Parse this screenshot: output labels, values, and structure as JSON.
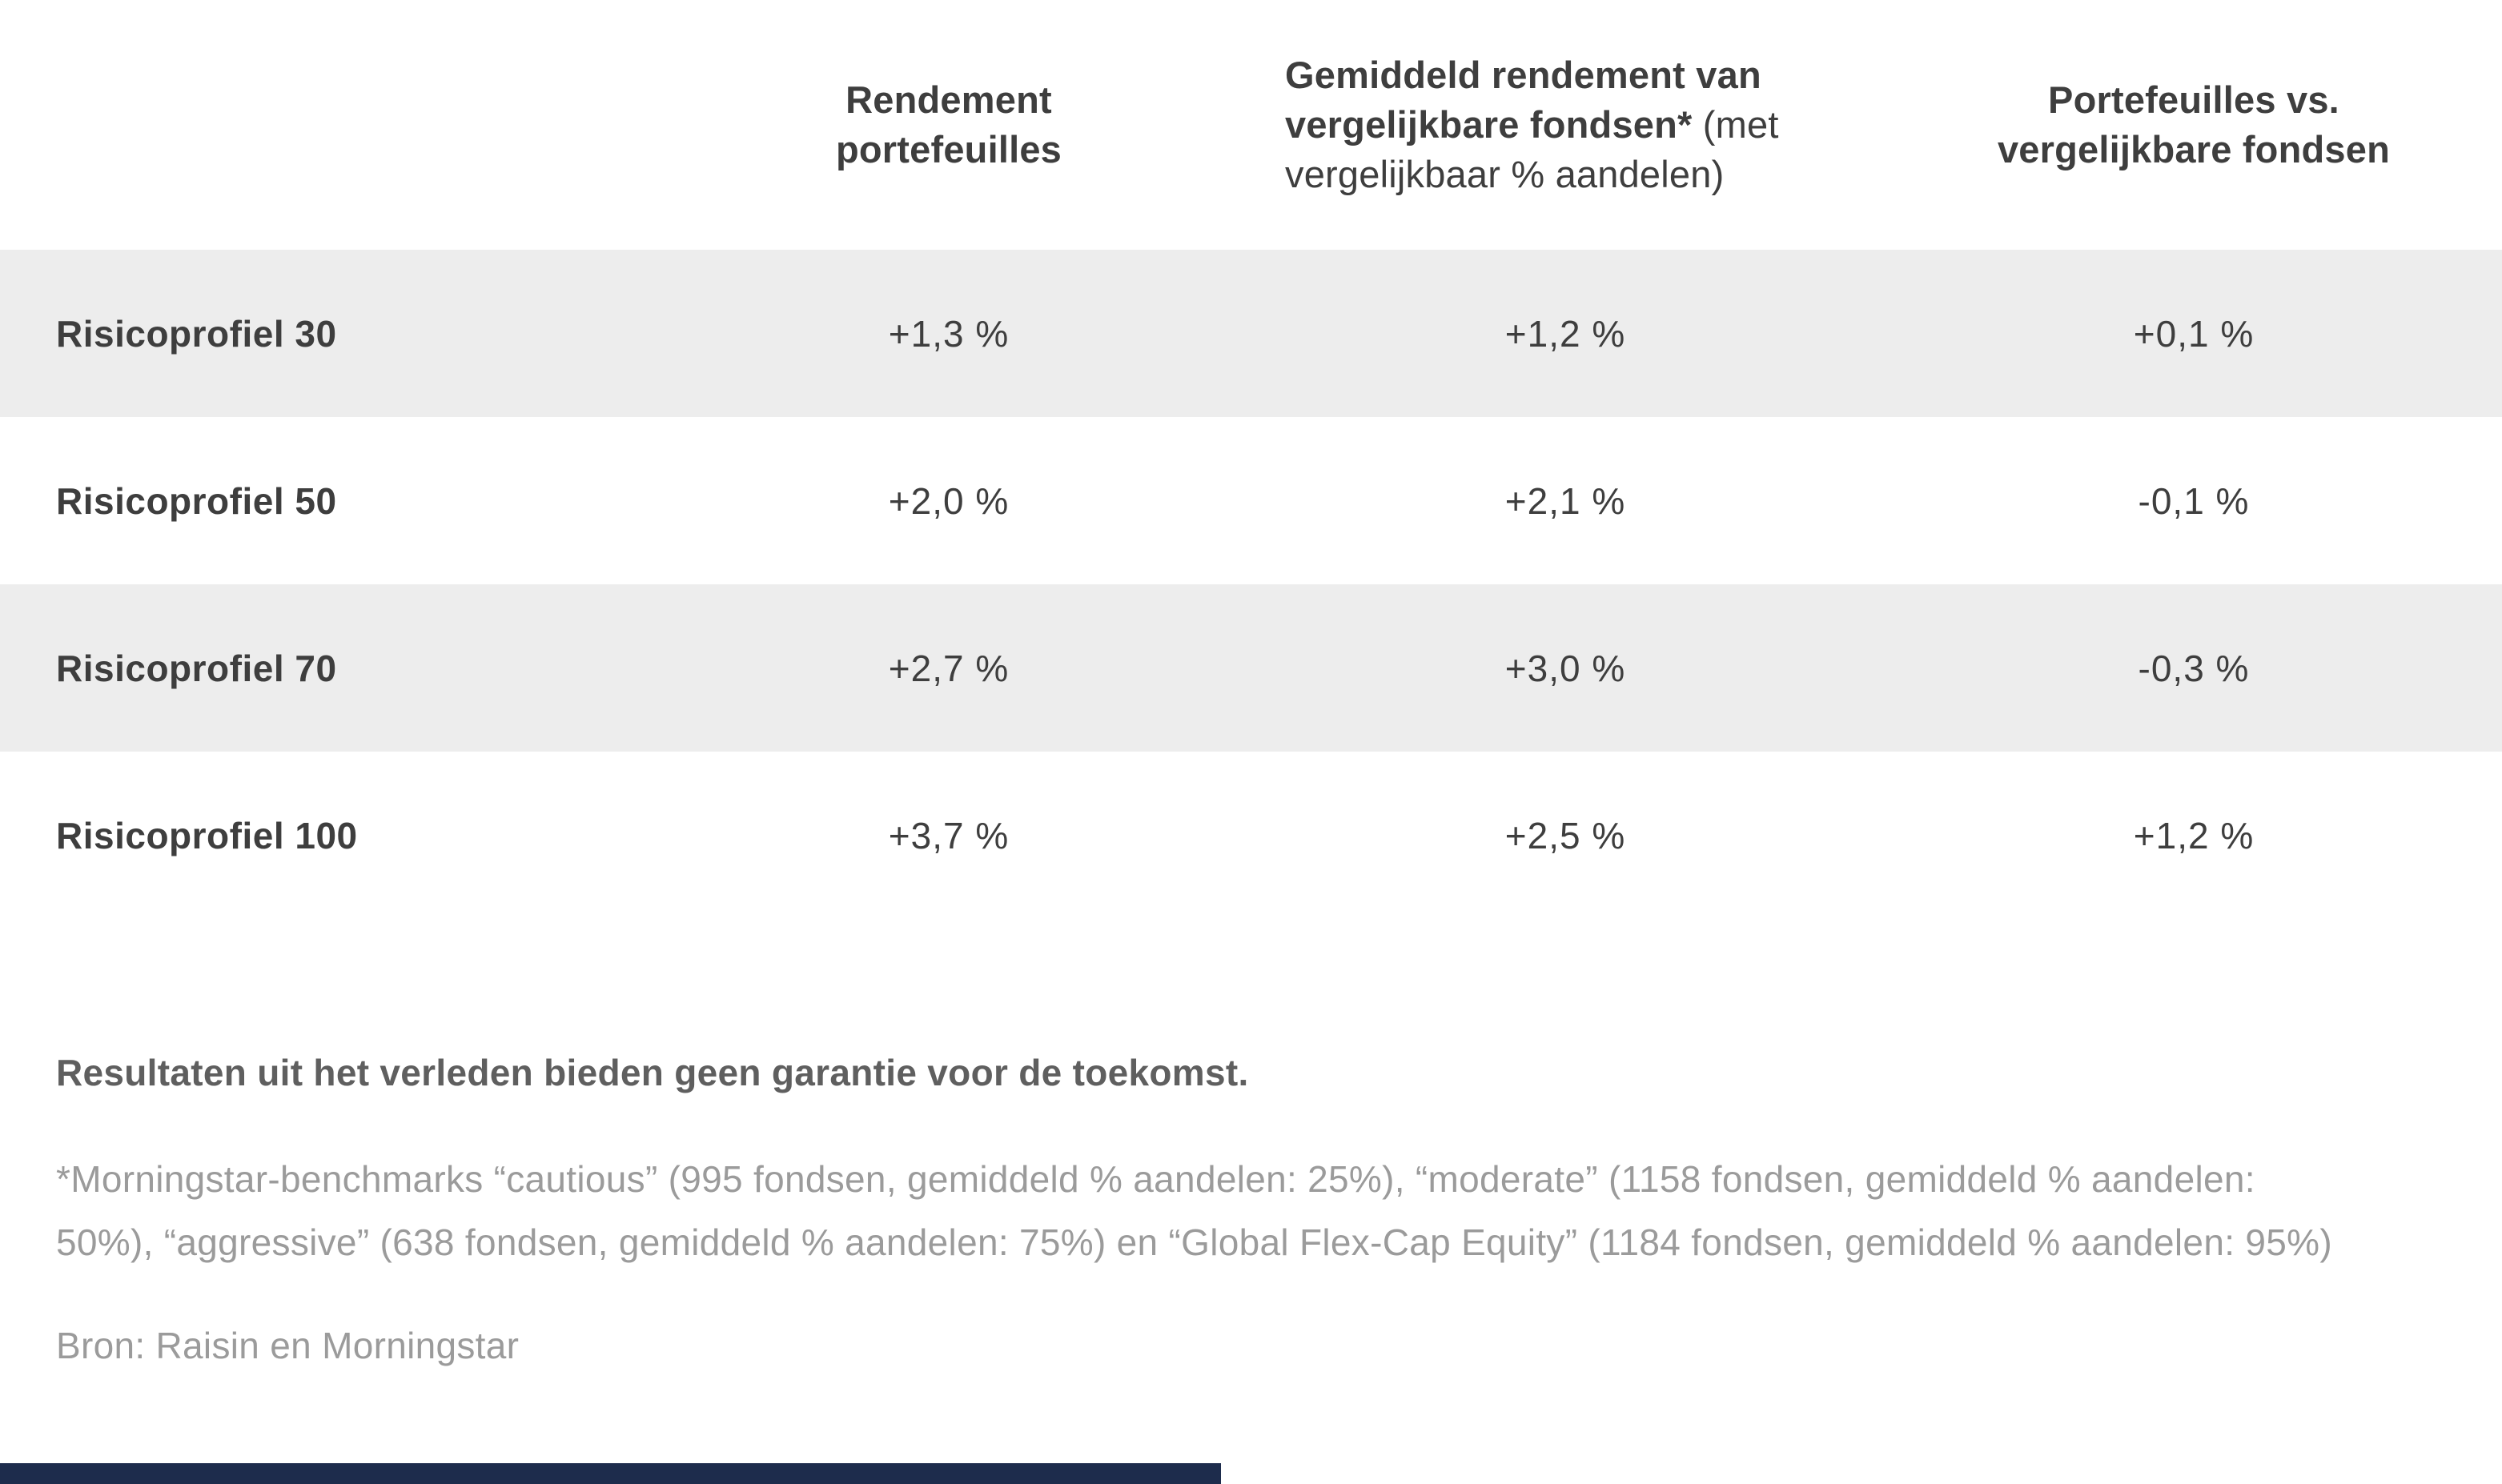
{
  "table": {
    "columns": [
      {
        "title": ""
      },
      {
        "title": "Rendement portefeuilles"
      },
      {
        "title_bold": "Gemiddeld rendement van vergelijkbare fondsen*",
        "title_note": " (met vergelijkbaar % aandelen)"
      },
      {
        "title": "Portefeuilles vs. vergelijkbare fondsen"
      }
    ],
    "rows": [
      {
        "label": "Risicoprofiel 30",
        "values": [
          "+1,3 %",
          "+1,2 %",
          "+0,1 %"
        ]
      },
      {
        "label": "Risicoprofiel 50",
        "values": [
          "+2,0 %",
          "+2,1 %",
          "-0,1 %"
        ]
      },
      {
        "label": "Risicoprofiel 70",
        "values": [
          "+2,7 %",
          "+3,0 %",
          "-0,3 %"
        ]
      },
      {
        "label": "Risicoprofiel 100",
        "values": [
          "+3,7 %",
          "+2,5 %",
          "+1,2 %"
        ]
      }
    ]
  },
  "footer": {
    "disclaimer": "Resultaten uit het verleden bieden geen garantie voor de toekomst.",
    "footnote": "*Morningstar-benchmarks “cautious” (995 fondsen, gemiddeld % aandelen: 25%), “moderate” (1158 fondsen, gemiddeld % aandelen: 50%), “aggressive” (638 fondsen, gemiddeld % aandelen: 75%) en “Global Flex-Cap Equity” (1184 fondsen, gemiddeld % aandelen: 95%)",
    "source": "Bron: Raisin en Morningstar"
  },
  "colors": {
    "text_dark": "#3e3e3e",
    "row_stripe": "#ededed",
    "disclaimer_gray": "#5f5f5f",
    "footnote_gray": "#9b9b9b",
    "bottom_bar_navy": "#1d2c4c"
  }
}
